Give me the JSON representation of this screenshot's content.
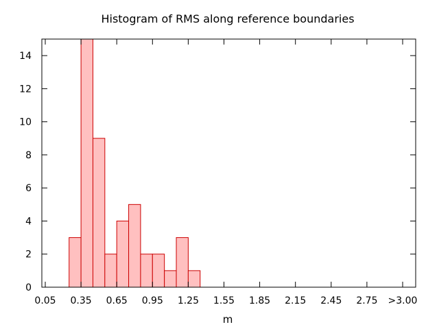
{
  "chart_data": {
    "type": "bar",
    "title": "Histogram of RMS along reference boundaries",
    "xlabel": "m",
    "ylabel": "",
    "bin_width": 0.1,
    "bins": [
      {
        "start": 0.25,
        "value": 3
      },
      {
        "start": 0.35,
        "value": 15
      },
      {
        "start": 0.45,
        "value": 9
      },
      {
        "start": 0.55,
        "value": 2
      },
      {
        "start": 0.65,
        "value": 4
      },
      {
        "start": 0.75,
        "value": 5
      },
      {
        "start": 0.85,
        "value": 2
      },
      {
        "start": 0.95,
        "value": 2
      },
      {
        "start": 1.05,
        "value": 1
      },
      {
        "start": 1.15,
        "value": 3
      },
      {
        "start": 1.25,
        "value": 1
      }
    ],
    "xlim": [
      0.05,
      3.05
    ],
    "ylim": [
      0,
      15
    ],
    "x_ticks": [
      {
        "value": 0.05,
        "label": "0.05"
      },
      {
        "value": 0.35,
        "label": "0.35"
      },
      {
        "value": 0.65,
        "label": "0.65"
      },
      {
        "value": 0.95,
        "label": "0.95"
      },
      {
        "value": 1.25,
        "label": "1.25"
      },
      {
        "value": 1.55,
        "label": "1.55"
      },
      {
        "value": 1.85,
        "label": "1.85"
      },
      {
        "value": 2.15,
        "label": "2.15"
      },
      {
        "value": 2.45,
        "label": "2.45"
      },
      {
        "value": 2.75,
        "label": "2.75"
      },
      {
        "value": 3.05,
        "label": ">3.00"
      }
    ],
    "y_ticks": [
      0,
      2,
      4,
      6,
      8,
      10,
      12,
      14
    ],
    "grid": false,
    "colors": {
      "bar_fill": "#ffc0c0",
      "bar_stroke": "#cc0000",
      "axis": "#000000"
    }
  }
}
